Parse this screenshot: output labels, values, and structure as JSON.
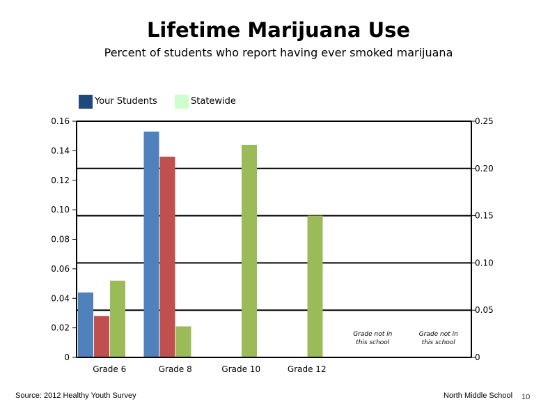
{
  "title": "Lifetime Marijuana Use",
  "subtitle": "Percent of students who report having ever smoked marijuana",
  "legend": [
    {
      "label": "Your Students",
      "color": "#1f497d"
    },
    {
      "label": "Statewide",
      "color": "#ccffcc"
    }
  ],
  "footer": {
    "source": "Source: 2012 Healthy Youth Survey",
    "school": "North Middle  School",
    "page": "10"
  },
  "chart_data": {
    "type": "bar",
    "categories": [
      "Grade 6",
      "Grade 8",
      "Grade 10",
      "Grade 12",
      "",
      ""
    ],
    "series": [
      {
        "color": "#4f81bd",
        "values": [
          0.044,
          0.153,
          null,
          null,
          null,
          null
        ]
      },
      {
        "color": "#c0504d",
        "values": [
          0.028,
          0.136,
          null,
          null,
          null,
          null
        ]
      },
      {
        "color": "#9bbb59",
        "values": [
          0.052,
          0.021,
          0.144,
          0.096,
          null,
          null
        ]
      }
    ],
    "ylim": [
      0,
      0.16
    ],
    "yticks": [
      "0",
      "0.02",
      "0.04",
      "0.06",
      "0.08",
      "0.10",
      "0.12",
      "0.14",
      "0.16"
    ],
    "y2lim": [
      0,
      0.25
    ],
    "y2ticks": [
      "0",
      "0.05",
      "0.10",
      "0.15",
      "0.20",
      "0.25"
    ],
    "annotations": [
      {
        "category_index": 4,
        "line1": "Grade not in",
        "line2": "this school"
      },
      {
        "category_index": 5,
        "line1": "Grade not in",
        "line2": "this school"
      }
    ],
    "grid": true
  }
}
